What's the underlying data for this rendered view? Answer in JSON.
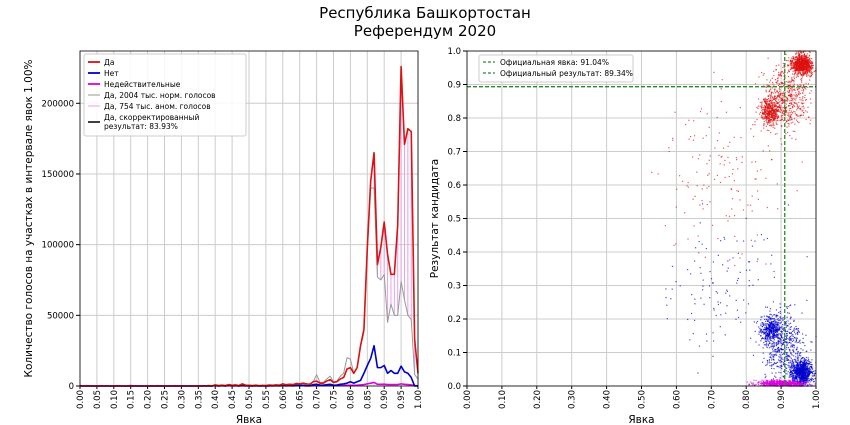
{
  "title": "Республика Башкортостан",
  "subtitle": "Референдум 2020",
  "colors": {
    "yes": "#dd1111",
    "no": "#0000cc",
    "invalid": "#dd00dd",
    "norm": "#999999",
    "anom": "#e8a0e8",
    "corrected": "#000000",
    "official": "#2a8a2a",
    "grid": "#cccccc"
  },
  "chart_data": [
    {
      "type": "line",
      "xlabel": "Явка",
      "ylabel": "Количество голосов на участках в интервале явок 1.00%",
      "xlim": [
        0,
        1
      ],
      "ylim": [
        0,
        237000
      ],
      "x_start": 0,
      "x_step": 0.01,
      "xticks": [
        "0.00",
        "0.05",
        "0.10",
        "0.15",
        "0.20",
        "0.25",
        "0.30",
        "0.35",
        "0.40",
        "0.45",
        "0.50",
        "0.55",
        "0.60",
        "0.65",
        "0.70",
        "0.75",
        "0.80",
        "0.85",
        "0.90",
        "0.95",
        "1.00"
      ],
      "yticks": [
        0,
        50000,
        100000,
        150000,
        200000
      ],
      "ytick_labels": [
        "0",
        "50000",
        "100000",
        "150000",
        "200000"
      ],
      "grid": true,
      "legend_position": "top-left",
      "series": [
        {
          "key": "yes",
          "name": "Да",
          "values": [
            300,
            0,
            200,
            0,
            0,
            0,
            0,
            0,
            0,
            0,
            0,
            200,
            0,
            0,
            0,
            300,
            0,
            0,
            0,
            0,
            0,
            0,
            0,
            200,
            0,
            0,
            0,
            0,
            200,
            0,
            0,
            0,
            0,
            0,
            0,
            0,
            200,
            0,
            300,
            0,
            800,
            300,
            600,
            300,
            1000,
            500,
            800,
            300,
            1500,
            600,
            500,
            300,
            600,
            200,
            400,
            300,
            700,
            500,
            800,
            600,
            1500,
            900,
            1200,
            1000,
            1800,
            1500,
            2000,
            1500,
            1200,
            3000,
            3500,
            2000,
            2000,
            3500,
            4500,
            2500,
            3000,
            5000,
            6000,
            12000,
            13000,
            9000,
            13000,
            28500,
            40000,
            98000,
            145000,
            165000,
            86000,
            98000,
            116000,
            93000,
            79000,
            79000,
            114000,
            226000,
            171000,
            182000,
            180000,
            33000,
            9000
          ]
        },
        {
          "key": "no",
          "name": "Нет",
          "values": [
            0,
            0,
            0,
            0,
            0,
            0,
            0,
            0,
            0,
            0,
            0,
            0,
            0,
            0,
            0,
            0,
            0,
            0,
            0,
            0,
            0,
            0,
            0,
            0,
            0,
            0,
            0,
            0,
            0,
            0,
            0,
            0,
            0,
            0,
            0,
            0,
            0,
            0,
            0,
            0,
            400,
            0,
            300,
            0,
            500,
            200,
            300,
            0,
            600,
            200,
            200,
            0,
            300,
            0,
            200,
            0,
            300,
            200,
            300,
            200,
            400,
            300,
            300,
            200,
            500,
            400,
            500,
            300,
            200,
            1000,
            1200,
            700,
            600,
            900,
            1200,
            600,
            700,
            1200,
            1500,
            2000,
            3000,
            2000,
            3000,
            4000,
            9000,
            14500,
            19500,
            28500,
            13000,
            13000,
            14500,
            9000,
            11000,
            9000,
            9000,
            14000,
            10000,
            9000,
            6000,
            0,
            0
          ]
        },
        {
          "key": "invalid",
          "name": "Недействительные",
          "values": [
            0,
            0,
            0,
            0,
            0,
            0,
            0,
            0,
            0,
            0,
            0,
            0,
            0,
            0,
            0,
            0,
            0,
            0,
            0,
            0,
            0,
            0,
            0,
            0,
            0,
            0,
            0,
            0,
            0,
            0,
            0,
            0,
            0,
            0,
            0,
            0,
            0,
            0,
            0,
            0,
            300,
            0,
            200,
            0,
            300,
            0,
            200,
            0,
            200,
            0,
            0,
            0,
            0,
            0,
            0,
            0,
            0,
            0,
            200,
            0,
            300,
            0,
            200,
            0,
            300,
            200,
            200,
            0,
            0,
            300,
            300,
            200,
            200,
            300,
            300,
            200,
            200,
            300,
            400,
            500,
            500,
            500,
            600,
            800,
            1000,
            1500,
            2000,
            2500,
            1200,
            1200,
            1300,
            1000,
            1000,
            1000,
            1000,
            1500,
            1200,
            1000,
            800,
            300,
            100
          ]
        },
        {
          "key": "norm",
          "name": "Да, 2004 тыс. норм. голосов",
          "values": [
            300,
            0,
            200,
            0,
            0,
            0,
            0,
            0,
            0,
            0,
            0,
            200,
            0,
            0,
            0,
            300,
            0,
            0,
            0,
            0,
            0,
            0,
            0,
            200,
            0,
            0,
            0,
            0,
            200,
            0,
            0,
            0,
            0,
            0,
            0,
            0,
            200,
            0,
            300,
            0,
            800,
            300,
            600,
            300,
            1000,
            500,
            800,
            300,
            1500,
            600,
            500,
            300,
            600,
            200,
            400,
            300,
            700,
            500,
            800,
            600,
            1500,
            900,
            1200,
            1000,
            1800,
            1500,
            2000,
            1500,
            1200,
            3000,
            8000,
            2500,
            2500,
            5000,
            7000,
            3000,
            3500,
            7000,
            9000,
            20000,
            19000,
            9000,
            13000,
            28000,
            38000,
            95000,
            140000,
            140000,
            77000,
            75000,
            79000,
            45000,
            58000,
            50000,
            50000,
            74000,
            61000,
            50000,
            47000,
            8000,
            5000
          ]
        },
        {
          "key": "anom",
          "name": "Да, 754 тыс. аном. голосов"
        },
        {
          "key": "corrected",
          "name": "Да, скорректированный результат: 83.93%"
        }
      ]
    },
    {
      "type": "scatter",
      "xlabel": "Явка",
      "ylabel": "Результат кандидата",
      "xlim": [
        0,
        1
      ],
      "ylim": [
        0,
        1
      ],
      "xticks": [
        "0.00",
        "0.10",
        "0.20",
        "0.30",
        "0.40",
        "0.50",
        "0.60",
        "0.70",
        "0.80",
        "0.90",
        "1.00"
      ],
      "yticks": [
        "0.0",
        "0.1",
        "0.2",
        "0.3",
        "0.4",
        "0.5",
        "0.6",
        "0.7",
        "0.8",
        "0.9",
        "1.0"
      ],
      "grid": true,
      "legend_position": "top-left",
      "official_turnout": 0.9104,
      "official_result": 0.8934,
      "legend": [
        "Официальная явка: 91.04%",
        "Официальный результат: 89.34%"
      ],
      "clusters": [
        {
          "series": "yes",
          "x": 0.96,
          "y": 0.96,
          "sx": 0.025,
          "sy": 0.025,
          "n": 900
        },
        {
          "series": "yes",
          "x": 0.87,
          "y": 0.82,
          "sx": 0.025,
          "sy": 0.035,
          "n": 450
        },
        {
          "series": "yes",
          "x": 0.92,
          "y": 0.86,
          "sx": 0.05,
          "sy": 0.08,
          "n": 500
        },
        {
          "series": "yes",
          "x": 0.74,
          "y": 0.62,
          "sx": 0.14,
          "sy": 0.2,
          "n": 150
        },
        {
          "series": "no",
          "x": 0.96,
          "y": 0.04,
          "sx": 0.025,
          "sy": 0.035,
          "n": 900
        },
        {
          "series": "no",
          "x": 0.87,
          "y": 0.17,
          "sx": 0.025,
          "sy": 0.035,
          "n": 400
        },
        {
          "series": "no",
          "x": 0.91,
          "y": 0.12,
          "sx": 0.05,
          "sy": 0.09,
          "n": 500
        },
        {
          "series": "no",
          "x": 0.74,
          "y": 0.3,
          "sx": 0.14,
          "sy": 0.18,
          "n": 120
        },
        {
          "series": "invalid",
          "x": 0.9,
          "y": 0.008,
          "sx": 0.06,
          "sy": 0.008,
          "n": 600
        }
      ]
    }
  ]
}
